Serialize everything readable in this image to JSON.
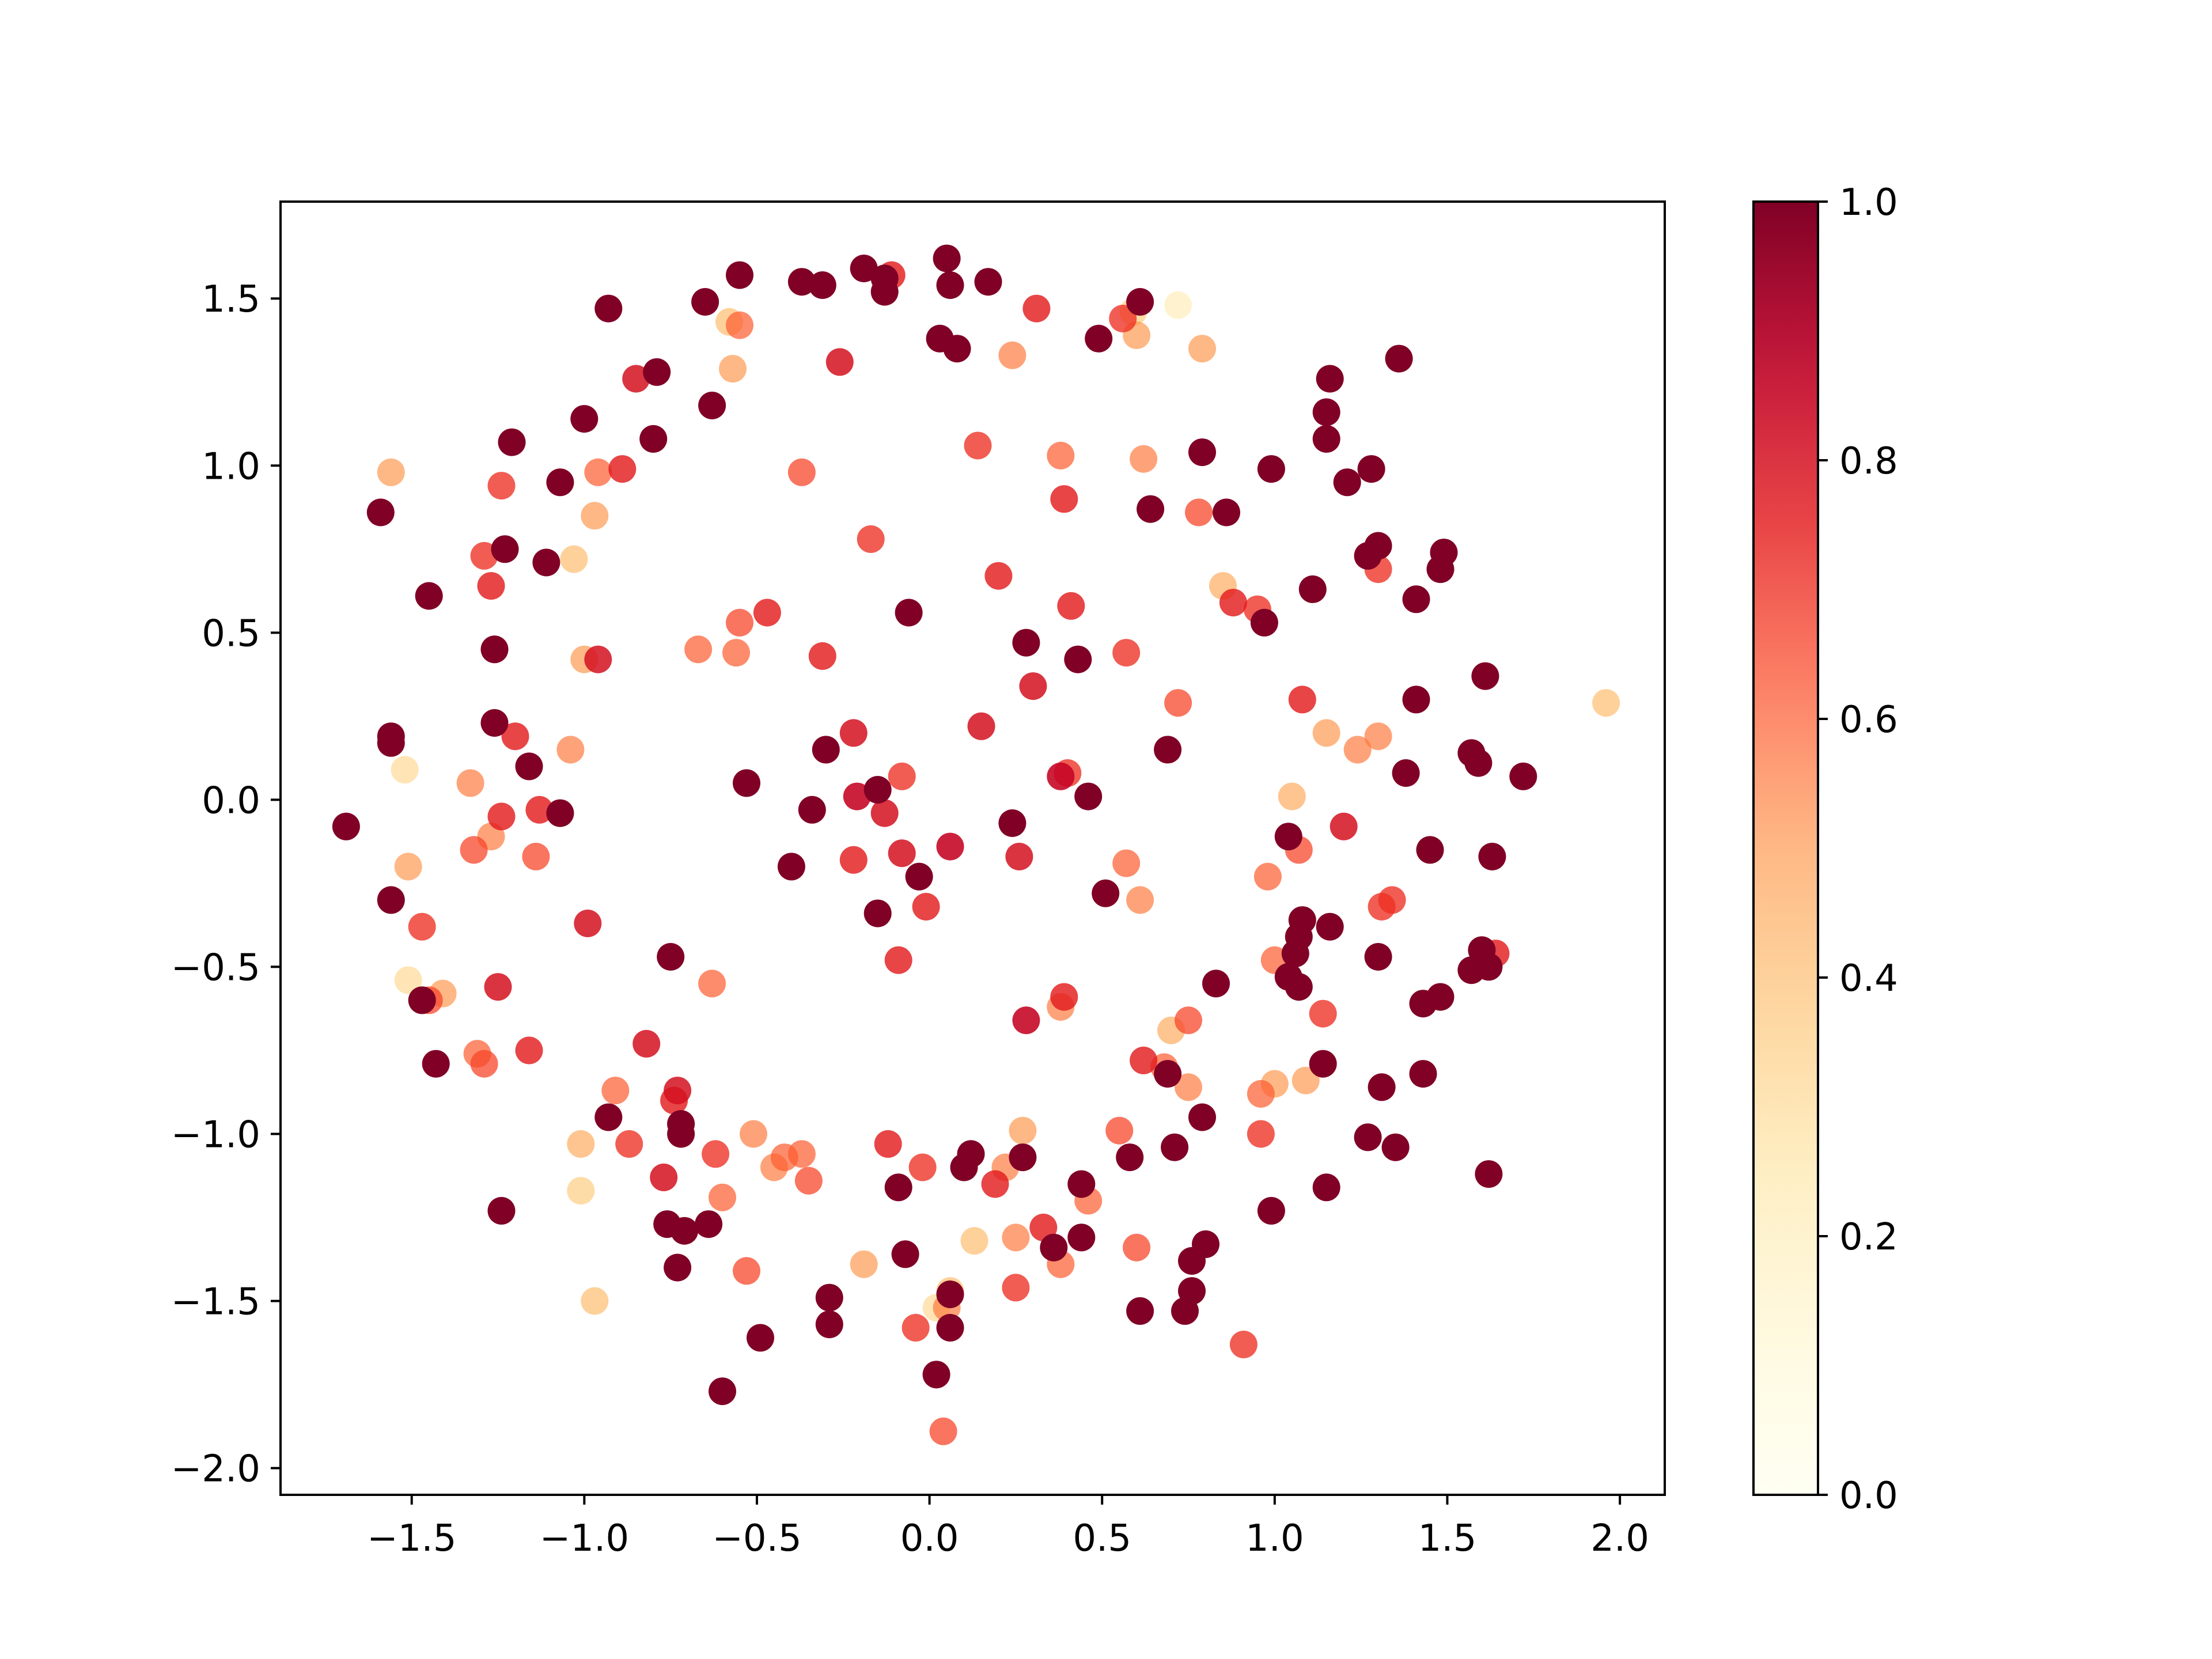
{
  "chart_data": {
    "type": "scatter",
    "title": "",
    "xlabel": "",
    "ylabel": "",
    "xlim": [
      -1.88,
      2.13
    ],
    "ylim": [
      -2.08,
      1.79
    ],
    "xticks": [
      -1.5,
      -1.0,
      -0.5,
      0.0,
      0.5,
      1.0,
      1.5,
      2.0
    ],
    "yticks": [
      -2.0,
      -1.5,
      -1.0,
      -0.5,
      0.0,
      0.5,
      1.0,
      1.5
    ],
    "xtick_labels": [
      "−1.5",
      "−1.0",
      "−0.5",
      "0.0",
      "0.5",
      "1.0",
      "1.5",
      "2.0"
    ],
    "ytick_labels": [
      "−2.0",
      "−1.5",
      "−1.0",
      "−0.5",
      "0.0",
      "0.5",
      "1.0",
      "1.5"
    ],
    "grid": false,
    "legend": "none",
    "colormap": {
      "name": "YlOrRd",
      "stops": [
        "#ffffcc",
        "#ffeda0",
        "#fed976",
        "#feb24c",
        "#fd8d3c",
        "#fc4e2a",
        "#e31a1c",
        "#bd0026",
        "#800026"
      ],
      "alpha_min": 0.25,
      "alpha_max": 1.0,
      "range": [
        0.0,
        1.0
      ],
      "ticks": [
        0.0,
        0.2,
        0.4,
        0.6,
        0.8,
        1.0
      ],
      "tick_labels": [
        "0.0",
        "0.2",
        "0.4",
        "0.6",
        "0.8",
        "1.0"
      ]
    },
    "points": [
      [
        0.05,
        1.62,
        1.0
      ],
      [
        -0.19,
        1.59,
        1.0
      ],
      [
        -0.55,
        1.57,
        1.0
      ],
      [
        -0.37,
        1.55,
        1.0
      ],
      [
        -0.31,
        1.54,
        1.0
      ],
      [
        -0.13,
        1.56,
        1.0
      ],
      [
        0.17,
        1.55,
        1.0
      ],
      [
        0.06,
        1.54,
        1.0
      ],
      [
        -0.65,
        1.49,
        1.0
      ],
      [
        -0.93,
        1.47,
        1.0
      ],
      [
        -0.13,
        1.52,
        1.0
      ],
      [
        0.61,
        1.49,
        1.0
      ],
      [
        0.03,
        1.38,
        1.0
      ],
      [
        0.08,
        1.35,
        1.0
      ],
      [
        0.49,
        1.38,
        1.0
      ],
      [
        1.36,
        1.32,
        1.0
      ],
      [
        -0.79,
        1.28,
        1.0
      ],
      [
        1.16,
        1.26,
        1.0
      ],
      [
        -0.63,
        1.18,
        1.0
      ],
      [
        1.15,
        1.16,
        1.0
      ],
      [
        -1.0,
        1.14,
        1.0
      ],
      [
        -0.8,
        1.08,
        1.0
      ],
      [
        1.15,
        1.08,
        1.0
      ],
      [
        -1.21,
        1.07,
        1.0
      ],
      [
        0.79,
        1.04,
        1.0
      ],
      [
        0.99,
        0.99,
        1.0
      ],
      [
        1.28,
        0.99,
        1.0
      ],
      [
        -1.07,
        0.95,
        1.0
      ],
      [
        1.21,
        0.95,
        1.0
      ],
      [
        -1.59,
        0.86,
        1.0
      ],
      [
        0.64,
        0.87,
        1.0
      ],
      [
        0.86,
        0.86,
        1.0
      ],
      [
        1.3,
        0.76,
        1.0
      ],
      [
        -1.23,
        0.75,
        1.0
      ],
      [
        1.49,
        0.74,
        1.0
      ],
      [
        1.27,
        0.73,
        1.0
      ],
      [
        -1.11,
        0.71,
        1.0
      ],
      [
        1.48,
        0.69,
        1.0
      ],
      [
        -1.45,
        0.61,
        1.0
      ],
      [
        1.11,
        0.63,
        1.0
      ],
      [
        1.41,
        0.6,
        1.0
      ],
      [
        -0.06,
        0.56,
        1.0
      ],
      [
        0.97,
        0.53,
        1.0
      ],
      [
        0.28,
        0.47,
        1.0
      ],
      [
        -1.26,
        0.45,
        1.0
      ],
      [
        0.43,
        0.42,
        1.0
      ],
      [
        1.61,
        0.37,
        1.0
      ],
      [
        1.41,
        0.3,
        1.0
      ],
      [
        -1.26,
        0.23,
        1.0
      ],
      [
        -1.56,
        0.19,
        1.0
      ],
      [
        -1.56,
        0.17,
        1.0
      ],
      [
        -0.3,
        0.15,
        1.0
      ],
      [
        0.69,
        0.15,
        1.0
      ],
      [
        1.57,
        0.14,
        1.0
      ],
      [
        1.59,
        0.11,
        1.0
      ],
      [
        -1.16,
        0.1,
        1.0
      ],
      [
        1.38,
        0.08,
        1.0
      ],
      [
        1.72,
        0.07,
        1.0
      ],
      [
        -0.53,
        0.05,
        1.0
      ],
      [
        -0.15,
        0.03,
        1.0
      ],
      [
        0.46,
        0.01,
        1.0
      ],
      [
        -0.34,
        -0.03,
        1.0
      ],
      [
        -1.07,
        -0.04,
        1.0
      ],
      [
        0.24,
        -0.07,
        1.0
      ],
      [
        -1.69,
        -0.08,
        1.0
      ],
      [
        1.04,
        -0.11,
        1.0
      ],
      [
        1.45,
        -0.15,
        1.0
      ],
      [
        1.63,
        -0.17,
        1.0
      ],
      [
        -0.4,
        -0.2,
        1.0
      ],
      [
        -0.03,
        -0.23,
        1.0
      ],
      [
        -1.56,
        -0.3,
        1.0
      ],
      [
        0.51,
        -0.28,
        1.0
      ],
      [
        -0.15,
        -0.34,
        1.0
      ],
      [
        1.08,
        -0.36,
        1.0
      ],
      [
        1.07,
        -0.41,
        1.0
      ],
      [
        1.16,
        -0.38,
        1.0
      ],
      [
        1.06,
        -0.46,
        1.0
      ],
      [
        -0.75,
        -0.47,
        1.0
      ],
      [
        1.3,
        -0.47,
        1.0
      ],
      [
        1.6,
        -0.45,
        1.0
      ],
      [
        1.62,
        -0.5,
        1.0
      ],
      [
        1.57,
        -0.51,
        1.0
      ],
      [
        1.04,
        -0.53,
        1.0
      ],
      [
        1.07,
        -0.56,
        1.0
      ],
      [
        0.83,
        -0.55,
        1.0
      ],
      [
        -1.47,
        -0.6,
        1.0
      ],
      [
        1.43,
        -0.61,
        1.0
      ],
      [
        1.48,
        -0.59,
        1.0
      ],
      [
        -1.43,
        -0.79,
        1.0
      ],
      [
        1.14,
        -0.79,
        1.0
      ],
      [
        1.43,
        -0.82,
        1.0
      ],
      [
        0.69,
        -0.82,
        1.0
      ],
      [
        1.31,
        -0.86,
        1.0
      ],
      [
        -0.93,
        -0.95,
        1.0
      ],
      [
        -0.72,
        -0.97,
        1.0
      ],
      [
        -0.72,
        -1.0,
        1.0
      ],
      [
        0.79,
        -0.95,
        1.0
      ],
      [
        1.27,
        -1.01,
        1.0
      ],
      [
        1.35,
        -1.04,
        1.0
      ],
      [
        0.71,
        -1.04,
        1.0
      ],
      [
        0.58,
        -1.07,
        1.0
      ],
      [
        0.27,
        -1.07,
        1.0
      ],
      [
        0.12,
        -1.06,
        1.0
      ],
      [
        0.1,
        -1.1,
        1.0
      ],
      [
        0.44,
        -1.15,
        1.0
      ],
      [
        -0.09,
        -1.16,
        1.0
      ],
      [
        1.15,
        -1.16,
        1.0
      ],
      [
        1.62,
        -1.12,
        1.0
      ],
      [
        -1.24,
        -1.23,
        1.0
      ],
      [
        0.99,
        -1.23,
        1.0
      ],
      [
        -0.76,
        -1.27,
        1.0
      ],
      [
        -0.64,
        -1.27,
        1.0
      ],
      [
        -0.71,
        -1.29,
        1.0
      ],
      [
        0.44,
        -1.31,
        1.0
      ],
      [
        0.36,
        -1.34,
        1.0
      ],
      [
        0.8,
        -1.33,
        1.0
      ],
      [
        0.76,
        -1.38,
        1.0
      ],
      [
        -0.73,
        -1.4,
        1.0
      ],
      [
        -0.07,
        -1.36,
        1.0
      ],
      [
        0.76,
        -1.47,
        1.0
      ],
      [
        0.74,
        -1.53,
        1.0
      ],
      [
        0.06,
        -1.48,
        1.0
      ],
      [
        -0.29,
        -1.49,
        1.0
      ],
      [
        0.61,
        -1.53,
        1.0
      ],
      [
        -0.29,
        -1.57,
        1.0
      ],
      [
        0.06,
        -1.58,
        1.0
      ],
      [
        -0.49,
        -1.61,
        1.0
      ],
      [
        0.02,
        -1.72,
        1.0
      ],
      [
        -0.6,
        -1.77,
        1.0
      ],
      [
        -0.11,
        1.57,
        0.75
      ],
      [
        0.31,
        1.47,
        0.75
      ],
      [
        0.56,
        1.44,
        0.7
      ],
      [
        -0.55,
        1.42,
        0.6
      ],
      [
        -0.85,
        1.26,
        0.8
      ],
      [
        -0.26,
        1.31,
        0.8
      ],
      [
        0.24,
        1.33,
        0.55
      ],
      [
        0.79,
        1.35,
        0.5
      ],
      [
        -0.57,
        1.29,
        0.5
      ],
      [
        0.6,
        1.39,
        0.5
      ],
      [
        -0.96,
        0.98,
        0.6
      ],
      [
        -0.89,
        0.99,
        0.75
      ],
      [
        -1.24,
        0.94,
        0.7
      ],
      [
        -0.37,
        0.98,
        0.65
      ],
      [
        0.14,
        1.06,
        0.7
      ],
      [
        0.62,
        1.02,
        0.55
      ],
      [
        0.38,
        1.03,
        0.6
      ],
      [
        0.39,
        0.9,
        0.75
      ],
      [
        0.78,
        0.86,
        0.65
      ],
      [
        -1.29,
        0.73,
        0.7
      ],
      [
        -0.17,
        0.78,
        0.7
      ],
      [
        -0.97,
        0.85,
        0.5
      ],
      [
        1.3,
        0.69,
        0.7
      ],
      [
        0.2,
        0.67,
        0.75
      ],
      [
        -1.27,
        0.64,
        0.75
      ],
      [
        0.88,
        0.59,
        0.75
      ],
      [
        0.95,
        0.57,
        0.7
      ],
      [
        0.41,
        0.58,
        0.75
      ],
      [
        -0.55,
        0.53,
        0.65
      ],
      [
        -0.56,
        0.44,
        0.6
      ],
      [
        -0.96,
        0.42,
        0.8
      ],
      [
        -0.47,
        0.56,
        0.75
      ],
      [
        0.57,
        0.44,
        0.7
      ],
      [
        -0.31,
        0.43,
        0.75
      ],
      [
        1.08,
        0.3,
        0.75
      ],
      [
        -0.67,
        0.45,
        0.6
      ],
      [
        0.72,
        0.29,
        0.65
      ],
      [
        -0.22,
        0.2,
        0.8
      ],
      [
        1.3,
        0.19,
        0.55
      ],
      [
        0.15,
        0.22,
        0.8
      ],
      [
        0.3,
        0.34,
        0.8
      ],
      [
        -1.2,
        0.19,
        0.75
      ],
      [
        -1.04,
        0.15,
        0.55
      ],
      [
        0.4,
        0.08,
        0.7
      ],
      [
        0.38,
        0.07,
        0.85
      ],
      [
        -0.21,
        0.01,
        0.85
      ],
      [
        -0.08,
        0.07,
        0.7
      ],
      [
        -1.33,
        0.05,
        0.55
      ],
      [
        -0.13,
        -0.04,
        0.8
      ],
      [
        -1.13,
        -0.03,
        0.75
      ],
      [
        -1.24,
        -0.05,
        0.75
      ],
      [
        0.06,
        -0.14,
        0.85
      ],
      [
        -0.08,
        -0.16,
        0.8
      ],
      [
        1.2,
        -0.08,
        0.8
      ],
      [
        -1.27,
        -0.11,
        0.55
      ],
      [
        1.07,
        -0.15,
        0.65
      ],
      [
        -1.14,
        -0.17,
        0.65
      ],
      [
        -0.22,
        -0.18,
        0.75
      ],
      [
        0.57,
        -0.19,
        0.6
      ],
      [
        0.26,
        -0.17,
        0.8
      ],
      [
        -1.51,
        -0.2,
        0.5
      ],
      [
        0.61,
        -0.3,
        0.55
      ],
      [
        -0.01,
        -0.32,
        0.75
      ],
      [
        1.34,
        -0.3,
        0.7
      ],
      [
        -1.47,
        -0.38,
        0.7
      ],
      [
        1.31,
        -0.32,
        0.7
      ],
      [
        -0.99,
        -0.37,
        0.8
      ],
      [
        1.0,
        -0.48,
        0.6
      ],
      [
        -0.09,
        -0.48,
        0.75
      ],
      [
        -0.63,
        -0.55,
        0.6
      ],
      [
        -1.25,
        -0.56,
        0.8
      ],
      [
        0.39,
        -0.59,
        0.75
      ],
      [
        0.38,
        -0.62,
        0.55
      ],
      [
        0.28,
        -0.66,
        0.85
      ],
      [
        1.64,
        -0.46,
        0.75
      ],
      [
        -1.45,
        -0.6,
        0.65
      ],
      [
        1.14,
        -0.64,
        0.7
      ],
      [
        0.75,
        -0.66,
        0.65
      ],
      [
        -1.16,
        -0.75,
        0.75
      ],
      [
        -1.31,
        -0.76,
        0.6
      ],
      [
        -0.82,
        -0.73,
        0.8
      ],
      [
        -1.29,
        -0.79,
        0.65
      ],
      [
        0.62,
        -0.78,
        0.75
      ],
      [
        0.68,
        -0.8,
        0.6
      ],
      [
        -0.91,
        -0.87,
        0.6
      ],
      [
        -0.74,
        -0.9,
        0.75
      ],
      [
        -0.73,
        -0.87,
        0.8
      ],
      [
        1.0,
        -0.85,
        0.5
      ],
      [
        1.09,
        -0.84,
        0.5
      ],
      [
        0.75,
        -0.86,
        0.55
      ],
      [
        0.96,
        -0.88,
        0.6
      ],
      [
        0.96,
        -1.0,
        0.7
      ],
      [
        -0.87,
        -1.03,
        0.7
      ],
      [
        -0.51,
        -1.0,
        0.55
      ],
      [
        -0.12,
        -1.03,
        0.75
      ],
      [
        0.27,
        -0.99,
        0.5
      ],
      [
        0.55,
        -0.99,
        0.65
      ],
      [
        -0.62,
        -1.06,
        0.7
      ],
      [
        -0.42,
        -1.07,
        0.6
      ],
      [
        -0.37,
        -1.06,
        0.6
      ],
      [
        -0.45,
        -1.1,
        0.55
      ],
      [
        -0.02,
        -1.1,
        0.7
      ],
      [
        0.22,
        -1.1,
        0.55
      ],
      [
        -0.77,
        -1.13,
        0.8
      ],
      [
        -0.35,
        -1.14,
        0.65
      ],
      [
        0.19,
        -1.15,
        0.75
      ],
      [
        -0.6,
        -1.19,
        0.6
      ],
      [
        0.46,
        -1.2,
        0.6
      ],
      [
        0.33,
        -1.28,
        0.75
      ],
      [
        0.25,
        -1.31,
        0.55
      ],
      [
        0.6,
        -1.34,
        0.65
      ],
      [
        -0.97,
        -1.5,
        0.4
      ],
      [
        0.06,
        -1.47,
        0.4
      ],
      [
        -0.53,
        -1.41,
        0.65
      ],
      [
        0.38,
        -1.39,
        0.6
      ],
      [
        -0.19,
        -1.39,
        0.5
      ],
      [
        0.25,
        -1.46,
        0.7
      ],
      [
        0.05,
        -1.52,
        0.55
      ],
      [
        -0.04,
        -1.58,
        0.7
      ],
      [
        0.91,
        -1.63,
        0.7
      ],
      [
        0.04,
        -1.89,
        0.65
      ],
      [
        -1.56,
        0.98,
        0.5
      ],
      [
        -1.0,
        0.42,
        0.5
      ],
      [
        1.15,
        0.2,
        0.5
      ],
      [
        1.24,
        0.15,
        0.55
      ],
      [
        -1.32,
        -0.15,
        0.65
      ],
      [
        0.98,
        -0.23,
        0.6
      ],
      [
        -1.41,
        -0.58,
        0.5
      ],
      [
        1.96,
        0.29,
        0.4
      ],
      [
        -1.51,
        -0.54,
        0.3
      ],
      [
        -1.52,
        0.09,
        0.3
      ],
      [
        0.7,
        -0.69,
        0.45
      ],
      [
        -1.03,
        0.72,
        0.4
      ],
      [
        -1.01,
        -1.17,
        0.35
      ],
      [
        -1.01,
        -1.03,
        0.45
      ],
      [
        0.13,
        -1.32,
        0.4
      ],
      [
        0.85,
        0.64,
        0.45
      ],
      [
        0.59,
        1.46,
        0.35
      ],
      [
        0.72,
        1.48,
        0.2
      ],
      [
        0.02,
        -1.52,
        0.3
      ],
      [
        -0.58,
        1.43,
        0.4
      ],
      [
        1.05,
        0.01,
        0.45
      ]
    ]
  }
}
